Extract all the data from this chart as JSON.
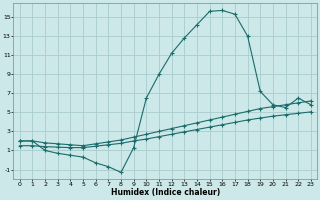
{
  "xlabel": "Humidex (Indice chaleur)",
  "background_color": "#cce8e8",
  "grid_color": "#aacccc",
  "line_color": "#1a6b6b",
  "xlim": [
    -0.5,
    23.5
  ],
  "ylim": [
    -2.0,
    16.5
  ],
  "yticks": [
    -1,
    1,
    3,
    5,
    7,
    9,
    11,
    13,
    15
  ],
  "xticks": [
    0,
    1,
    2,
    3,
    4,
    5,
    6,
    7,
    8,
    9,
    10,
    11,
    12,
    13,
    14,
    15,
    16,
    17,
    18,
    19,
    20,
    21,
    22,
    23
  ],
  "line1_x": [
    0,
    1,
    2,
    3,
    4,
    5,
    6,
    7,
    8,
    9,
    10,
    11,
    12,
    13,
    14,
    15,
    16,
    17,
    18,
    19,
    20,
    21,
    22,
    23
  ],
  "line1_y": [
    2.0,
    2.0,
    1.0,
    0.7,
    0.5,
    0.3,
    -0.3,
    -0.7,
    -1.3,
    1.3,
    6.5,
    9.0,
    11.2,
    12.8,
    14.2,
    15.6,
    15.7,
    15.3,
    13.0,
    7.2,
    5.8,
    5.5,
    6.5,
    5.8
  ],
  "line2_x": [
    0,
    1,
    2,
    3,
    4,
    5,
    6,
    7,
    8,
    9,
    10,
    11,
    12,
    13,
    14,
    15,
    16,
    17,
    18,
    19,
    20,
    21,
    22,
    23
  ],
  "line2_y": [
    2.0,
    2.0,
    1.8,
    1.7,
    1.6,
    1.5,
    1.7,
    1.9,
    2.1,
    2.4,
    2.7,
    3.0,
    3.3,
    3.6,
    3.9,
    4.2,
    4.5,
    4.8,
    5.1,
    5.4,
    5.6,
    5.8,
    6.0,
    6.2
  ],
  "line3_x": [
    0,
    1,
    2,
    3,
    4,
    5,
    6,
    7,
    8,
    9,
    10,
    11,
    12,
    13,
    14,
    15,
    16,
    17,
    18,
    19,
    20,
    21,
    22,
    23
  ],
  "line3_y": [
    1.5,
    1.5,
    1.4,
    1.35,
    1.3,
    1.3,
    1.45,
    1.6,
    1.75,
    2.0,
    2.2,
    2.45,
    2.7,
    2.95,
    3.2,
    3.45,
    3.7,
    3.95,
    4.2,
    4.4,
    4.6,
    4.75,
    4.9,
    5.05
  ]
}
